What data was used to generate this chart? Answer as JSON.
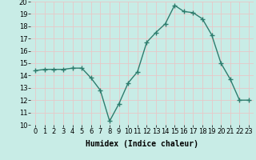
{
  "x": [
    0,
    1,
    2,
    3,
    4,
    5,
    6,
    7,
    8,
    9,
    10,
    11,
    12,
    13,
    14,
    15,
    16,
    17,
    18,
    19,
    20,
    21,
    22,
    23
  ],
  "y": [
    14.4,
    14.5,
    14.5,
    14.5,
    14.6,
    14.6,
    13.8,
    12.8,
    10.3,
    11.7,
    13.4,
    14.3,
    16.7,
    17.5,
    18.2,
    19.7,
    19.2,
    19.1,
    18.6,
    17.3,
    15.0,
    13.7,
    12.0,
    12.0
  ],
  "line_color": "#2e7d6e",
  "marker": "+",
  "marker_size": 4,
  "bg_color": "#c8ece6",
  "grid_color": "#e8c8c8",
  "xlabel": "Humidex (Indice chaleur)",
  "xlim": [
    -0.5,
    23.5
  ],
  "ylim": [
    10,
    20
  ],
  "yticks": [
    10,
    11,
    12,
    13,
    14,
    15,
    16,
    17,
    18,
    19,
    20
  ],
  "xticks": [
    0,
    1,
    2,
    3,
    4,
    5,
    6,
    7,
    8,
    9,
    10,
    11,
    12,
    13,
    14,
    15,
    16,
    17,
    18,
    19,
    20,
    21,
    22,
    23
  ],
  "xlabel_fontsize": 7,
  "tick_fontsize": 6,
  "line_width": 1.0,
  "marker_edge_width": 1.0
}
